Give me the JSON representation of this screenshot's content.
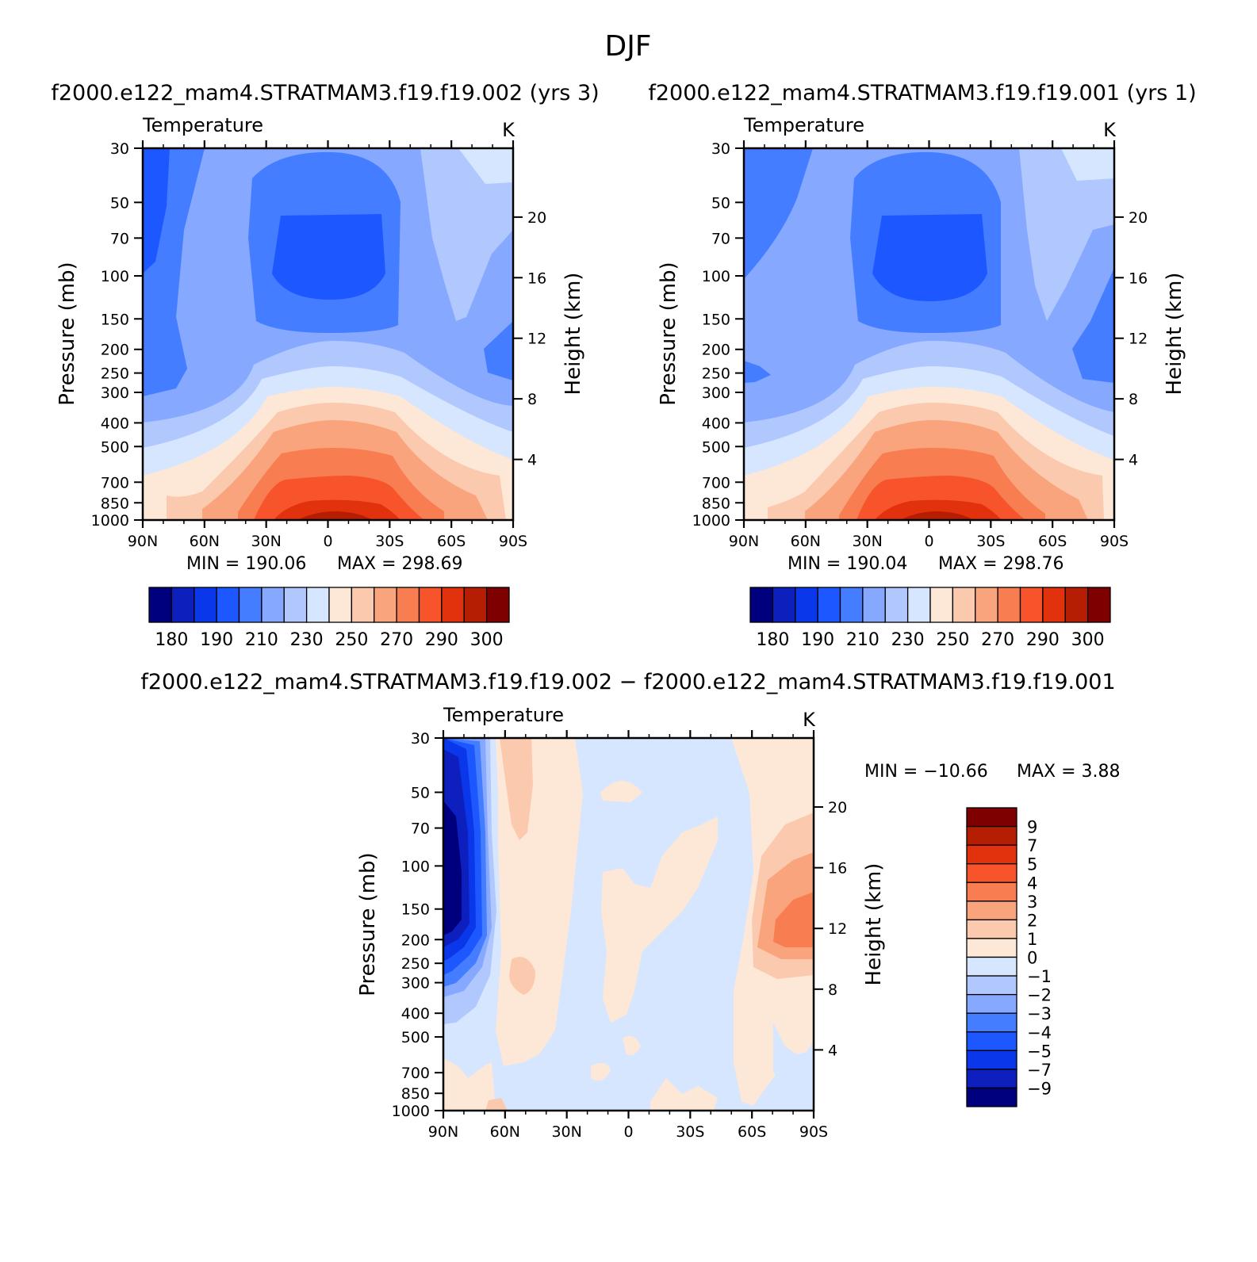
{
  "figure": {
    "season": "DJF",
    "title_left": "f2000.e122_mam4.STRATMAM3.f19.f19.002 (yrs 3)",
    "title_right": "f2000.e122_mam4.STRATMAM3.f19.f19.001 (yrs 1)",
    "title_diff": "f2000.e122_mam4.STRATMAM3.f19.f19.002 − f2000.e122_mam4.STRATMAM3.f19.f19.001"
  },
  "chart_data": [
    {
      "id": "case1",
      "type": "heatmap",
      "title": "Temperature",
      "units": "K",
      "xlabel": "",
      "ylabel": "Pressure (mb)",
      "y2label": "Height (km)",
      "xticks": [
        "90N",
        "60N",
        "30N",
        "0",
        "30S",
        "60S",
        "90S"
      ],
      "yticks": [
        30,
        50,
        70,
        100,
        150,
        200,
        250,
        300,
        400,
        500,
        700,
        850,
        1000
      ],
      "y2ticks": [
        4,
        8,
        12,
        16,
        20
      ],
      "ylim": [
        1000,
        30
      ],
      "min_text": "MIN = 190.06",
      "max_text": "MAX = 298.69",
      "min": 190.06,
      "max": 298.69,
      "colorbar_labels": [
        "180",
        "190",
        "210",
        "230",
        "250",
        "270",
        "290",
        "300"
      ],
      "colorbar_colors": [
        "#00007f",
        "#0d1fbd",
        "#0b37ea",
        "#1d57ff",
        "#447dff",
        "#86a8ff",
        "#b1c8ff",
        "#d6e6ff",
        "#fde8d8",
        "#fbc9ad",
        "#f9a47d",
        "#f87d51",
        "#f7542b",
        "#e1310d",
        "#b61e04",
        "#7f0000"
      ]
    },
    {
      "id": "case2",
      "type": "heatmap",
      "title": "Temperature",
      "units": "K",
      "xlabel": "",
      "ylabel": "Pressure (mb)",
      "y2label": "Height (km)",
      "xticks": [
        "90N",
        "60N",
        "30N",
        "0",
        "30S",
        "60S",
        "90S"
      ],
      "yticks": [
        30,
        50,
        70,
        100,
        150,
        200,
        250,
        300,
        400,
        500,
        700,
        850,
        1000
      ],
      "y2ticks": [
        4,
        8,
        12,
        16,
        20
      ],
      "ylim": [
        1000,
        30
      ],
      "min_text": "MIN = 190.04",
      "max_text": "MAX = 298.76",
      "min": 190.04,
      "max": 298.76,
      "colorbar_labels": [
        "180",
        "190",
        "210",
        "230",
        "250",
        "270",
        "290",
        "300"
      ],
      "colorbar_colors": [
        "#00007f",
        "#0d1fbd",
        "#0b37ea",
        "#1d57ff",
        "#447dff",
        "#86a8ff",
        "#b1c8ff",
        "#d6e6ff",
        "#fde8d8",
        "#fbc9ad",
        "#f9a47d",
        "#f87d51",
        "#f7542b",
        "#e1310d",
        "#b61e04",
        "#7f0000"
      ]
    },
    {
      "id": "diff",
      "type": "heatmap",
      "title": "Temperature",
      "units": "K",
      "xlabel": "",
      "ylabel": "Pressure (mb)",
      "y2label": "Height (km)",
      "xticks": [
        "90N",
        "60N",
        "30N",
        "0",
        "30S",
        "60S",
        "90S"
      ],
      "yticks": [
        30,
        50,
        70,
        100,
        150,
        200,
        250,
        300,
        400,
        500,
        700,
        850,
        1000
      ],
      "y2ticks": [
        4,
        8,
        12,
        16,
        20
      ],
      "ylim": [
        1000,
        30
      ],
      "min_text": "MIN = −10.66",
      "max_text": "MAX = 3.88",
      "min": -10.66,
      "max": 3.88,
      "colorbar_labels": [
        "9",
        "7",
        "5",
        "4",
        "3",
        "2",
        "1",
        "0",
        "−1",
        "−2",
        "−3",
        "−4",
        "−5",
        "−7",
        "−9"
      ],
      "colorbar_colors": [
        "#7f0000",
        "#b61e04",
        "#e1310d",
        "#f7542b",
        "#f87d51",
        "#f9a47d",
        "#fbc9ad",
        "#fde8d8",
        "#d6e6ff",
        "#b1c8ff",
        "#86a8ff",
        "#447dff",
        "#1d57ff",
        "#0b37ea",
        "#0d1fbd",
        "#00007f"
      ]
    }
  ]
}
